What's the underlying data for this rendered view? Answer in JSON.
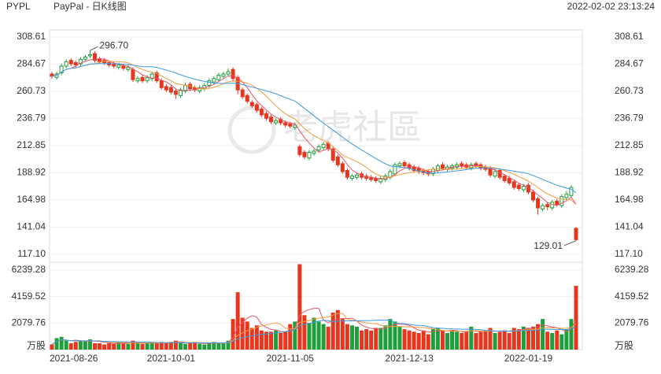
{
  "header": {
    "symbol": "PYPL",
    "name": "PayPal - 日K线图",
    "datetime": "2022-02-02 23:13:24",
    "watermark": "老虎社區"
  },
  "chart_data": {
    "type": "candlestick",
    "categories": [
      "2021-08-26",
      null,
      null,
      null,
      null,
      null,
      null,
      null,
      null,
      null,
      null,
      null,
      null,
      null,
      null,
      null,
      null,
      null,
      null,
      null,
      null,
      null,
      null,
      null,
      null,
      "2021-10-01",
      null,
      null,
      null,
      null,
      null,
      null,
      null,
      null,
      null,
      null,
      null,
      null,
      null,
      null,
      null,
      null,
      null,
      null,
      null,
      null,
      null,
      null,
      null,
      null,
      "2021-11-05",
      null,
      null,
      null,
      null,
      null,
      null,
      null,
      null,
      null,
      null,
      null,
      null,
      null,
      null,
      null,
      null,
      null,
      null,
      null,
      null,
      null,
      null,
      null,
      null,
      "2021-12-13",
      null,
      null,
      null,
      null,
      null,
      null,
      null,
      null,
      null,
      null,
      null,
      null,
      null,
      null,
      null,
      null,
      null,
      null,
      null,
      null,
      null,
      null,
      null,
      null,
      "2022-01-19",
      null,
      null,
      null,
      null,
      null,
      null,
      null,
      null,
      null,
      null
    ],
    "open": [
      276,
      273,
      277,
      283,
      288,
      286,
      285,
      289,
      292,
      294,
      289,
      288,
      286,
      285,
      282,
      283,
      280,
      280,
      270,
      273,
      270,
      272,
      277,
      270,
      265,
      264,
      261,
      257,
      261,
      267,
      264,
      261,
      263,
      266,
      269,
      271,
      274,
      276,
      280,
      273,
      262,
      257,
      251,
      249,
      245,
      241,
      238,
      233,
      236,
      233,
      232,
      229,
      212,
      207,
      202,
      206,
      209,
      211,
      215,
      210,
      203,
      197,
      191,
      184,
      185,
      188,
      186,
      185,
      184,
      181,
      183,
      185,
      188,
      195,
      198,
      196,
      194,
      193,
      191,
      190,
      188,
      191,
      196,
      192,
      193,
      194,
      197,
      196,
      193,
      197,
      196,
      194,
      193,
      186,
      191,
      186,
      184,
      181,
      178,
      174,
      178,
      172,
      166,
      157,
      161,
      158,
      164,
      160,
      167,
      169,
      140
    ],
    "high": [
      278,
      278,
      285,
      289,
      290,
      288,
      291,
      293,
      296.7,
      296,
      291,
      290,
      288,
      287,
      286,
      285,
      284,
      282,
      274,
      275,
      275,
      278,
      279,
      272,
      267,
      266,
      263,
      264,
      268,
      269,
      266,
      266,
      268,
      272,
      274,
      277,
      278,
      281,
      282,
      275,
      264,
      259,
      253,
      251,
      247,
      243,
      240,
      237,
      238,
      235,
      234,
      233,
      214,
      209,
      209,
      210,
      214,
      216,
      217,
      212,
      205,
      199,
      193,
      188,
      189,
      190,
      188,
      187,
      186,
      186,
      188,
      192,
      198,
      199,
      200,
      198,
      196,
      195,
      193,
      192,
      194,
      197,
      198,
      196,
      197,
      198,
      199,
      198,
      198,
      199,
      198,
      196,
      195,
      192,
      193,
      188,
      186,
      183,
      180,
      179,
      180,
      174,
      168,
      162,
      163,
      165,
      166,
      170,
      173,
      178,
      141
    ],
    "low": [
      272,
      271,
      275,
      281,
      283,
      282,
      283,
      287,
      290,
      286,
      285,
      284,
      282,
      281,
      280,
      279,
      278,
      269,
      268,
      268,
      268,
      270,
      268,
      262,
      260,
      258,
      254,
      255,
      259,
      261,
      260,
      259,
      261,
      264,
      267,
      269,
      272,
      274,
      270,
      258,
      254,
      250,
      246,
      242,
      238,
      235,
      232,
      231,
      231,
      229,
      228,
      227,
      203,
      201,
      200,
      204,
      207,
      209,
      208,
      198,
      194,
      188,
      183,
      182,
      183,
      183,
      182,
      181,
      180,
      179,
      181,
      183,
      186,
      193,
      193,
      191,
      189,
      188,
      187,
      186,
      186,
      189,
      191,
      190,
      191,
      192,
      193,
      192,
      191,
      193,
      191,
      190,
      185,
      184,
      183,
      180,
      178,
      174,
      173,
      172,
      170,
      163,
      152,
      155,
      156,
      156,
      159,
      158,
      165,
      167,
      129.01
    ],
    "close": [
      274,
      276,
      283,
      287,
      285,
      284,
      289,
      291,
      293,
      288,
      287,
      286,
      284,
      283,
      284,
      281,
      282,
      271,
      272,
      270,
      273,
      276,
      270,
      264,
      262,
      260,
      258,
      262,
      266,
      263,
      262,
      264,
      266,
      270,
      272,
      275,
      276,
      278,
      272,
      262,
      256,
      252,
      248,
      244,
      240,
      237,
      234,
      235,
      233,
      231,
      230,
      231,
      205,
      203,
      207,
      208,
      212,
      214,
      210,
      200,
      196,
      190,
      185,
      186,
      187,
      185,
      184,
      183,
      182,
      184,
      186,
      190,
      196,
      197,
      195,
      193,
      191,
      190,
      189,
      188,
      192,
      195,
      193,
      194,
      195,
      196,
      195,
      194,
      196,
      195,
      193,
      192,
      187,
      190,
      185,
      182,
      180,
      176,
      175,
      177,
      172,
      165,
      158,
      160,
      159,
      163,
      161,
      168,
      170,
      176,
      130
    ],
    "volume": [
      400,
      900,
      1000,
      700,
      500,
      600,
      700,
      700,
      800,
      500,
      500,
      400,
      500,
      450,
      600,
      500,
      450,
      700,
      500,
      450,
      500,
      550,
      500,
      600,
      550,
      600,
      700,
      500,
      450,
      500,
      600,
      450,
      400,
      500,
      600,
      500,
      550,
      700,
      2400,
      4500,
      2500,
      2200,
      1700,
      1900,
      1500,
      1400,
      1400,
      1500,
      1300,
      1400,
      2000,
      2200,
      6700,
      2700,
      2100,
      2500,
      2200,
      2000,
      1800,
      2900,
      3100,
      2400,
      2000,
      1900,
      1800,
      1500,
      1600,
      1500,
      1700,
      1700,
      1900,
      2400,
      2200,
      1800,
      1600,
      1500,
      1400,
      1300,
      1500,
      1200,
      1600,
      1700,
      1500,
      1300,
      1500,
      1400,
      1300,
      1400,
      1800,
      1300,
      1400,
      1500,
      1700,
      1300,
      1400,
      1500,
      1300,
      1700,
      1600,
      1800,
      1700,
      1800,
      2000,
      2400,
      1400,
      1300,
      1500,
      1200,
      1600,
      2400,
      5000
    ],
    "up_color": "#1f9e3c",
    "down_color": "#e8361e",
    "ma": [
      {
        "period": 5,
        "color": "#e5556a"
      },
      {
        "period": 10,
        "color": "#f39a3c"
      },
      {
        "period": 20,
        "color": "#3b9be0"
      }
    ],
    "ylim": [
      117.1,
      308.61
    ],
    "yticks": [
      {
        "value": 117.1,
        "label": "117.10"
      },
      141.04,
      164.98,
      188.92,
      212.85,
      236.79,
      260.73,
      284.67,
      308.61
    ],
    "volume_ylim": [
      0,
      6239.28
    ],
    "volume_yticks": [
      2079.76,
      4159.52,
      6239.28
    ],
    "volume_unit": "万股",
    "max_label": "296.70",
    "min_label": "129.01",
    "grid": true
  }
}
